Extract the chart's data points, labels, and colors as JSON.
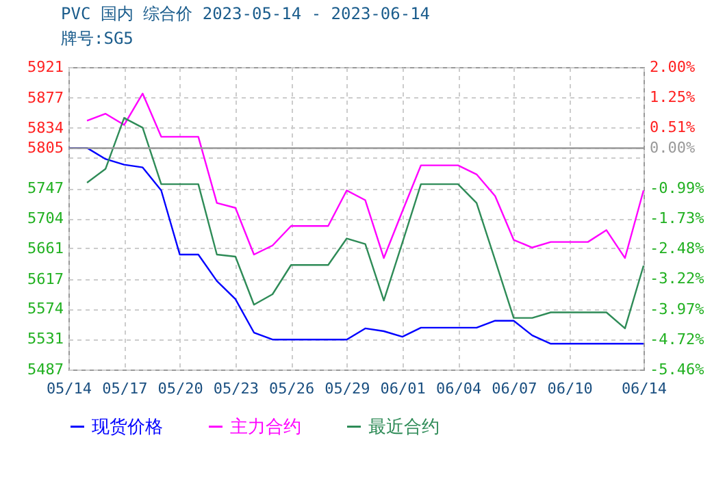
{
  "chart_data": {
    "type": "line",
    "title": "PVC 国内 综合价 2023-05-14 - 2023-06-14",
    "subtitle": "牌号:SG5",
    "x": [
      "2023-05-14",
      "2023-05-15",
      "2023-05-16",
      "2023-05-17",
      "2023-05-18",
      "2023-05-19",
      "2023-05-20",
      "2023-05-21",
      "2023-05-22",
      "2023-05-23",
      "2023-05-24",
      "2023-05-25",
      "2023-05-26",
      "2023-05-27",
      "2023-05-28",
      "2023-05-29",
      "2023-05-30",
      "2023-05-31",
      "2023-06-01",
      "2023-06-02",
      "2023-06-03",
      "2023-06-04",
      "2023-06-05",
      "2023-06-06",
      "2023-06-07",
      "2023-06-08",
      "2023-06-09",
      "2023-06-10",
      "2023-06-11",
      "2023-06-12",
      "2023-06-13",
      "2023-06-14"
    ],
    "series": [
      {
        "name": "现货价格",
        "color": "#0000ff",
        "values": [
          5805,
          5805,
          5789,
          5781,
          5777,
          5744,
          5652,
          5652,
          5614,
          5588,
          5540,
          5530,
          5530,
          5530,
          5530,
          5530,
          5546,
          5542,
          5534,
          5547,
          5547,
          5547,
          5547,
          5557,
          5557,
          5536,
          5524,
          5524,
          5524,
          5524,
          5524,
          5524
        ]
      },
      {
        "name": "主力合约",
        "color": "#ff00ff",
        "values": [
          null,
          5844,
          5854,
          5838,
          5883,
          5821,
          5821,
          5821,
          5726,
          5719,
          5652,
          5665,
          5693,
          5693,
          5693,
          5744,
          5730,
          5647,
          5714,
          5780,
          5780,
          5780,
          5767,
          5736,
          5673,
          5662,
          5670,
          5670,
          5670,
          5687,
          5647,
          5744
        ]
      },
      {
        "name": "最近合约",
        "color": "#2e8b57",
        "values": [
          null,
          5755,
          5775,
          5848,
          5834,
          5753,
          5753,
          5753,
          5652,
          5649,
          5580,
          5595,
          5637,
          5637,
          5637,
          5675,
          5667,
          5586,
          5669,
          5753,
          5753,
          5753,
          5726,
          5644,
          5561,
          5561,
          5569,
          5569,
          5569,
          5569,
          5546,
          5636
        ]
      }
    ],
    "xlim": [
      "2023-05-14",
      "2023-06-14"
    ],
    "xticks": [
      {
        "value": "2023-05-14",
        "label": "05/14"
      },
      {
        "value": "2023-05-17",
        "label": "05/17"
      },
      {
        "value": "2023-05-20",
        "label": "05/20"
      },
      {
        "value": "2023-05-23",
        "label": "05/23"
      },
      {
        "value": "2023-05-26",
        "label": "05/26"
      },
      {
        "value": "2023-05-29",
        "label": "05/29"
      },
      {
        "value": "2023-06-01",
        "label": "06/01"
      },
      {
        "value": "2023-06-04",
        "label": "06/04"
      },
      {
        "value": "2023-06-07",
        "label": "06/07"
      },
      {
        "value": "2023-06-10",
        "label": "06/10"
      },
      {
        "value": "2023-06-14",
        "label": "06/14"
      }
    ],
    "ylim": [
      5487,
      5921
    ],
    "yticks": [
      5487,
      5531,
      5574,
      5617,
      5661,
      5704,
      5747,
      {
        "value": 5791,
        "label": null
      },
      5805,
      5834,
      5877,
      5921
    ],
    "y2lim": [
      -5.46,
      2.0
    ],
    "y2ticks": [
      {
        "value": -5.46,
        "label": "-5.46%"
      },
      {
        "value": -4.72,
        "label": "-4.72%"
      },
      {
        "value": -3.97,
        "label": "-3.97%"
      },
      {
        "value": -3.22,
        "label": "-3.22%"
      },
      {
        "value": -2.48,
        "label": "-2.48%"
      },
      {
        "value": -1.73,
        "label": "-1.73%"
      },
      {
        "value": -0.99,
        "label": "-0.99%"
      },
      {
        "value": 0,
        "label": "0.00%"
      },
      {
        "value": 0.51,
        "label": "0.51%"
      },
      {
        "value": 1.25,
        "label": "1.25%"
      },
      {
        "value": 2.0,
        "label": "2.00%"
      }
    ],
    "ref_lines": [
      {
        "axis": "y2",
        "value": 0,
        "color": "#999999"
      }
    ],
    "grid": true,
    "legend": "bottom",
    "line_style": "solid"
  }
}
